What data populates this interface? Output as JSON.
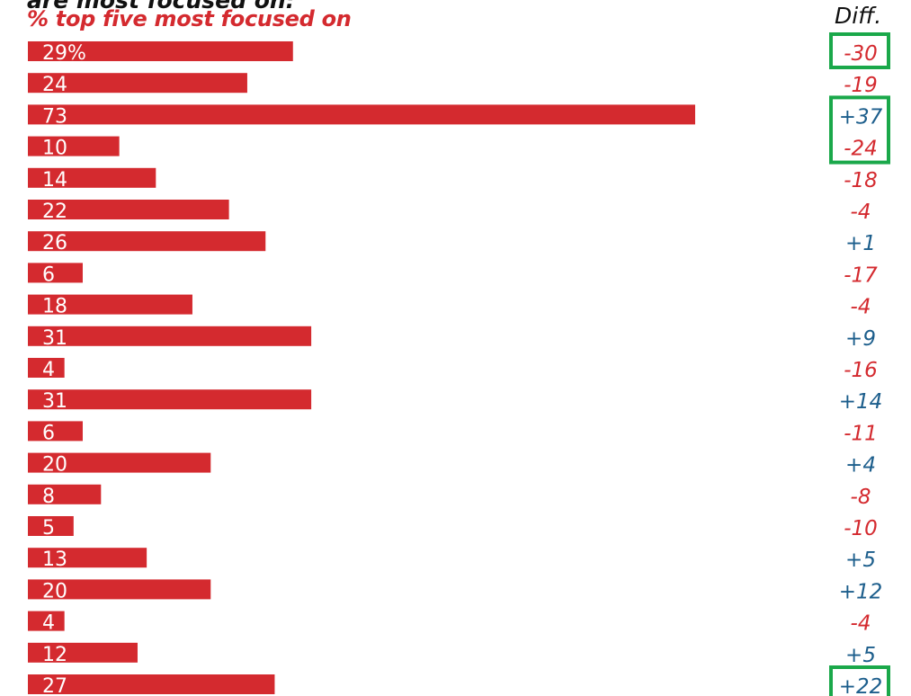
{
  "header": {
    "title": "are most focused on:",
    "subtitle": "% top five most focused on",
    "diff_label": "Diff."
  },
  "chart_data": {
    "type": "bar",
    "orientation": "horizontal",
    "title": "% top five most focused on",
    "xlim": [
      0,
      73
    ],
    "bar_color": "#d42a2f",
    "values": [
      29,
      24,
      73,
      10,
      14,
      22,
      26,
      6,
      18,
      31,
      4,
      31,
      6,
      20,
      8,
      5,
      13,
      20,
      4,
      12,
      27
    ],
    "value_labels": [
      "29%",
      "24",
      "73",
      "10",
      "14",
      "22",
      "26",
      "6",
      "18",
      "31",
      "4",
      "31",
      "6",
      "20",
      "8",
      "5",
      "13",
      "20",
      "4",
      "12",
      "27"
    ],
    "diff_values": [
      "-30",
      "-19",
      "+37",
      "-24",
      "-18",
      "-4",
      "+1",
      "-17",
      "-4",
      "+9",
      "-16",
      "+14",
      "-11",
      "+4",
      "-8",
      "-10",
      "+5",
      "+12",
      "-4",
      "+5",
      "+22"
    ],
    "diff_colors": {
      "negative": "#d42a2f",
      "positive": "#1c5e8c"
    },
    "highlighted_diffs": [
      0,
      2,
      3,
      20
    ],
    "highlight_color": "#1aa84a"
  }
}
